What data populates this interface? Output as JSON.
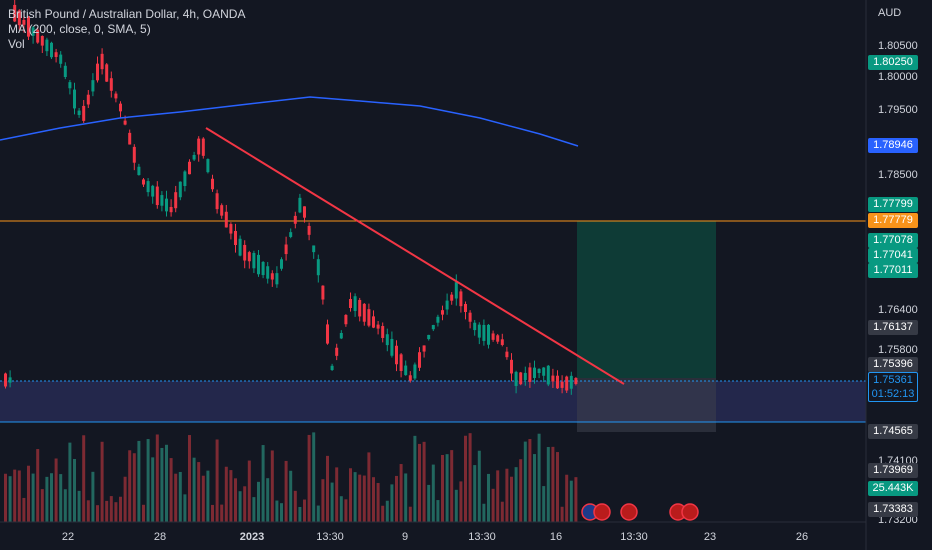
{
  "legend": {
    "title": "British Pound / Australian Dollar, 4h, OANDA",
    "ma": "MA (200, close, 0, SMA, 5)",
    "vol": "Vol"
  },
  "currency": "AUD",
  "price_axis": [
    "1.80500",
    "1.80000",
    "1.79500",
    "1.78500",
    "1.76400",
    "1.75800",
    "1.74100",
    "1.73200"
  ],
  "price_tags": [
    {
      "text": "1.80250",
      "color": "#089981"
    },
    {
      "text": "1.78946",
      "color": "#2962ff"
    },
    {
      "text": "1.77799",
      "color": "#089981"
    },
    {
      "text": "1.77779",
      "color": "#f7931a"
    },
    {
      "text": "1.77078",
      "color": "#089981"
    },
    {
      "text": "1.77041",
      "color": "#089981"
    },
    {
      "text": "1.77011",
      "color": "#089981"
    },
    {
      "text": "1.76137",
      "color": "#363a45"
    },
    {
      "text": "1.75396",
      "color": "#363a45"
    },
    {
      "text": "1.75361",
      "color": "#131722",
      "extra": "01:52:13"
    },
    {
      "text": "1.74565",
      "color": "#363a45"
    },
    {
      "text": "1.73969",
      "color": "#363a45"
    },
    {
      "text": "25.443K",
      "color": "#089981"
    },
    {
      "text": "1.73383",
      "color": "#363a45"
    }
  ],
  "time_axis": [
    "22",
    "28",
    "2023",
    "13:30",
    "9",
    "13:30",
    "16",
    "13:30",
    "23",
    "26"
  ],
  "colors": {
    "up": "#089981",
    "down": "#f23645",
    "ma": "#2962ff",
    "trendline": "#f23645",
    "orange_line": "#f7931a",
    "zone": "#2a2e5a",
    "target": "#0e3b36"
  },
  "chart_data": {
    "type": "candlestick",
    "symbol": "GBPAUD",
    "timeframe": "4h",
    "levels": {
      "last_price": 1.75361,
      "countdown": "01:52:13",
      "orange_level": 1.77779,
      "zone_top": 1.75361,
      "zone_bottom": 1.74565,
      "target_top": 1.77779,
      "target_bottom": 1.74565
    },
    "ylim": [
      1.732,
      1.808
    ],
    "volume_last": "25.443K"
  },
  "events": [
    {
      "icon": "australia-flag-icon"
    },
    {
      "icon": "uk-flag-icon"
    },
    {
      "icon": "uk-flag-icon"
    },
    {
      "icon": "uk-flag-icon"
    },
    {
      "icon": "uk-flag-icon"
    }
  ]
}
